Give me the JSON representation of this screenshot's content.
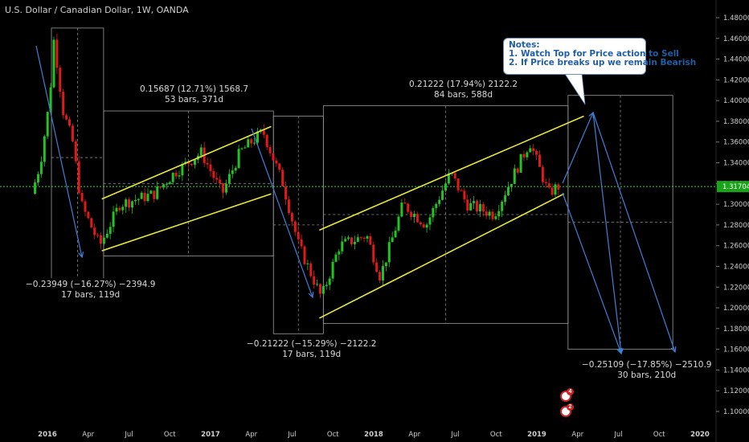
{
  "header": {
    "title": "U.S. Dollar / Canadian Dollar, 1W, OANDA"
  },
  "note": {
    "heading": "Notes:",
    "line1": "1. Watch Top for Price action to Sell",
    "line2": "2. If Price breaks up we remain Bearish"
  },
  "measurements": [
    {
      "line1": "0.15687 (12.71%) 1568.7",
      "line2": "53 bars, 371d"
    },
    {
      "line1": "0.21222 (17.94%) 2122.2",
      "line2": "84 bars, 588d"
    },
    {
      "line1": "−0.23949 (−16.27%) −2394.9",
      "line2": "17 bars, 119d"
    },
    {
      "line1": "−0.21222 (−15.29%) −2122.2",
      "line2": "17 bars, 119d"
    },
    {
      "line1": "−0.25109 (−17.85%) −2510.9",
      "line2": "30 bars, 210d"
    }
  ],
  "badges": {
    "first": "4",
    "second": "2"
  },
  "colors": {
    "background": "#000000",
    "up": "#22c322",
    "down": "#e01919",
    "channel": "#e8e83a",
    "arrow": "#3f7fd8",
    "current_price_line": "#22dd22",
    "current_price_label_bg": "#1aa31a"
  },
  "chart_data": {
    "type": "candlestick",
    "title": "U.S. Dollar / Canadian Dollar, 1W, OANDA",
    "x_ticks": [
      "2016",
      "Apr",
      "Jul",
      "Oct",
      "2017",
      "Apr",
      "Jul",
      "Oct",
      "2018",
      "Apr",
      "Jul",
      "Oct",
      "2019",
      "Apr",
      "Jul",
      "Oct",
      "2020"
    ],
    "y_ticks": [
      "1.48000",
      "1.46000",
      "1.44000",
      "1.42000",
      "1.40000",
      "1.38000",
      "1.36000",
      "1.34000",
      "1.32000",
      "1.30000",
      "1.28000",
      "1.26000",
      "1.24000",
      "1.22000",
      "1.20000",
      "1.18000",
      "1.16000",
      "1.14000",
      "1.12000",
      "1.10000"
    ],
    "ylim": [
      1.09,
      1.49
    ],
    "current_price": "1.31704",
    "price_path": [
      [
        "2015-12",
        1.31
      ],
      [
        "2015-12-20",
        1.34
      ],
      [
        "2016-01-10",
        1.4
      ],
      [
        "2016-01-20",
        1.46
      ],
      [
        "2016-02-10",
        1.39
      ],
      [
        "2016-03-01",
        1.36
      ],
      [
        "2016-03-20",
        1.3
      ],
      [
        "2016-05-01",
        1.26
      ],
      [
        "2016-06-15",
        1.3
      ],
      [
        "2016-09-01",
        1.31
      ],
      [
        "2016-10-15",
        1.33
      ],
      [
        "2016-12-15",
        1.35
      ],
      [
        "2017-02-01",
        1.31
      ],
      [
        "2017-03-10",
        1.35
      ],
      [
        "2017-05-01",
        1.37
      ],
      [
        "2017-06-15",
        1.32
      ],
      [
        "2017-07-20",
        1.26
      ],
      [
        "2017-09-10",
        1.21
      ],
      [
        "2017-10-20",
        1.26
      ],
      [
        "2017-12-20",
        1.27
      ],
      [
        "2018-01-20",
        1.23
      ],
      [
        "2018-03-10",
        1.3
      ],
      [
        "2018-05-01",
        1.28
      ],
      [
        "2018-06-25",
        1.33
      ],
      [
        "2018-08-01",
        1.3
      ],
      [
        "2018-10-01",
        1.29
      ],
      [
        "2018-12-20",
        1.36
      ],
      [
        "2019-01-15",
        1.33
      ],
      [
        "2019-02-01",
        1.31
      ],
      [
        "2019-02-20",
        1.317
      ]
    ],
    "channels": [
      {
        "start": [
          "2016-05-01",
          1.255
        ],
        "end": [
          "2017-05-15",
          1.31
        ]
      },
      {
        "start": [
          "2016-05-01",
          1.305
        ],
        "end": [
          "2017-05-15",
          1.375
        ]
      },
      {
        "start": [
          "2017-09-01",
          1.19
        ],
        "end": [
          "2019-03-01",
          1.31
        ]
      },
      {
        "start": [
          "2017-09-01",
          1.275
        ],
        "end": [
          "2019-04-15",
          1.385
        ]
      }
    ],
    "projection": [
      [
        "2019-03-01",
        1.31
      ],
      [
        "2019-04-20",
        1.385
      ],
      [
        "2019-10-20",
        1.155
      ]
    ]
  }
}
